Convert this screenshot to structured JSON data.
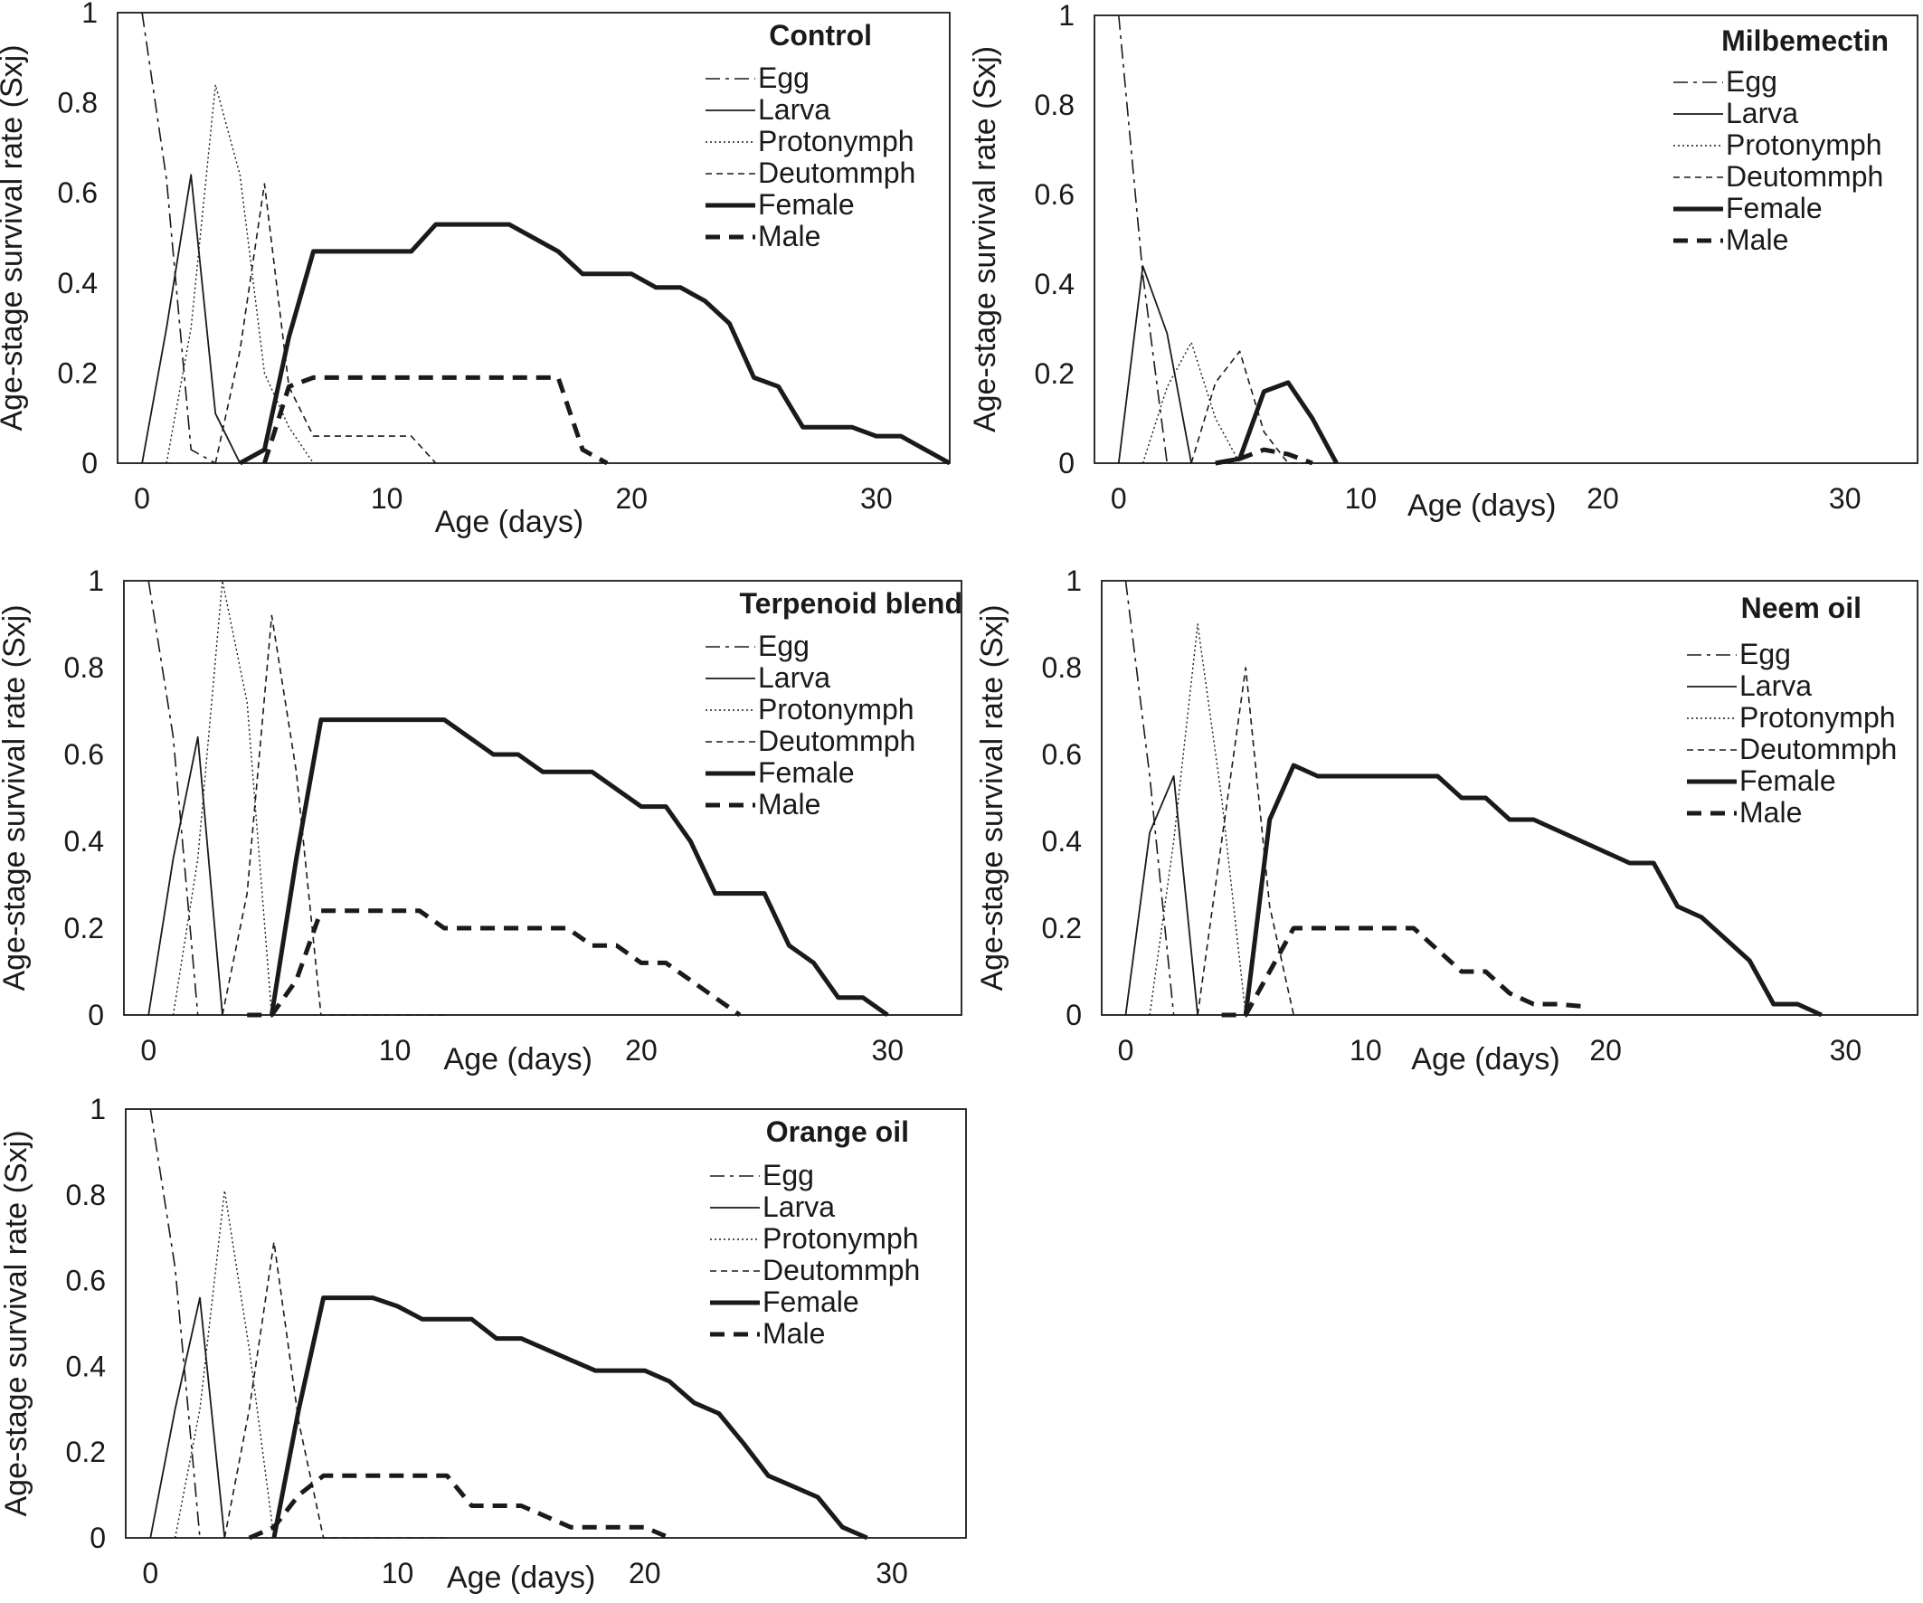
{
  "chart_data": [
    {
      "type": "line",
      "title": "Control",
      "xlabel": "Age (days)",
      "ylabel": "Age-stage survival rate (Sxj)",
      "xlim": [
        -1,
        33
      ],
      "ylim": [
        0,
        1
      ],
      "xticks": [
        0,
        10,
        20,
        30
      ],
      "yticks": [
        0,
        0.2,
        0.4,
        0.6,
        0.8,
        1
      ],
      "series": [
        {
          "name": "Egg",
          "x": [
            0,
            1,
            2,
            3
          ],
          "y": [
            1,
            0.63,
            0.03,
            0
          ]
        },
        {
          "name": "Larva",
          "x": [
            0,
            1,
            2,
            3,
            4
          ],
          "y": [
            0,
            0.3,
            0.64,
            0.11,
            0
          ]
        },
        {
          "name": "Protonymph",
          "x": [
            1,
            2,
            3,
            4,
            5,
            6,
            7
          ],
          "y": [
            0,
            0.3,
            0.84,
            0.64,
            0.2,
            0.08,
            0
          ]
        },
        {
          "name": "Deutommph",
          "x": [
            3,
            4,
            5,
            6,
            7,
            8,
            9,
            10,
            11,
            12
          ],
          "y": [
            0,
            0.25,
            0.62,
            0.17,
            0.06,
            0.06,
            0.06,
            0.06,
            0.06,
            0
          ]
        },
        {
          "name": "Female",
          "x": [
            4,
            5,
            6,
            7,
            8,
            9,
            10,
            11,
            12,
            13,
            14,
            15,
            16,
            17,
            18,
            19,
            20,
            21,
            22,
            23,
            24,
            25,
            26,
            27,
            28,
            29,
            30,
            31,
            32,
            33
          ],
          "y": [
            0,
            0.03,
            0.28,
            0.47,
            0.47,
            0.47,
            0.47,
            0.47,
            0.53,
            0.53,
            0.53,
            0.53,
            0.5,
            0.47,
            0.42,
            0.42,
            0.42,
            0.39,
            0.39,
            0.36,
            0.31,
            0.19,
            0.17,
            0.08,
            0.08,
            0.08,
            0.06,
            0.06,
            0.03,
            0
          ]
        },
        {
          "name": "Male",
          "x": [
            5,
            6,
            7,
            8,
            9,
            10,
            11,
            12,
            13,
            14,
            15,
            16,
            17,
            18,
            19
          ],
          "y": [
            0,
            0.17,
            0.19,
            0.19,
            0.19,
            0.19,
            0.19,
            0.19,
            0.19,
            0.19,
            0.19,
            0.19,
            0.19,
            0.03,
            0
          ]
        }
      ]
    },
    {
      "type": "line",
      "title": "Milbemectin",
      "xlabel": "Age (days)",
      "ylabel": "Age-stage survival rate (Sxj)",
      "xlim": [
        -1,
        33
      ],
      "ylim": [
        0,
        1
      ],
      "xticks": [
        0,
        10,
        20,
        30
      ],
      "yticks": [
        0,
        0.2,
        0.4,
        0.6,
        0.8,
        1
      ],
      "series": [
        {
          "name": "Egg",
          "x": [
            0,
            1,
            2
          ],
          "y": [
            1,
            0.42,
            0
          ]
        },
        {
          "name": "Larva",
          "x": [
            0,
            1,
            2,
            3
          ],
          "y": [
            0,
            0.44,
            0.29,
            0
          ]
        },
        {
          "name": "Protonymph",
          "x": [
            1,
            2,
            3,
            4,
            5
          ],
          "y": [
            0,
            0.17,
            0.27,
            0.1,
            0
          ]
        },
        {
          "name": "Deutommph",
          "x": [
            3,
            4,
            5,
            6,
            7,
            8
          ],
          "y": [
            0,
            0.18,
            0.25,
            0.07,
            0,
            0
          ]
        },
        {
          "name": "Female",
          "x": [
            4,
            5,
            6,
            7,
            8,
            9
          ],
          "y": [
            0,
            0.01,
            0.16,
            0.18,
            0.1,
            0
          ]
        },
        {
          "name": "Male",
          "x": [
            4,
            5,
            6,
            7,
            8
          ],
          "y": [
            0,
            0.01,
            0.03,
            0.02,
            0
          ]
        }
      ]
    },
    {
      "type": "line",
      "title": "Terpenoid blend",
      "xlabel": "Age (days)",
      "ylabel": "Age-stage survival rate (Sxj)",
      "xlim": [
        -1,
        33
      ],
      "ylim": [
        0,
        1
      ],
      "xticks": [
        0,
        10,
        20,
        30
      ],
      "yticks": [
        0,
        0.2,
        0.4,
        0.6,
        0.8,
        1
      ],
      "series": [
        {
          "name": "Egg",
          "x": [
            0,
            1,
            2
          ],
          "y": [
            1,
            0.64,
            0
          ]
        },
        {
          "name": "Larva",
          "x": [
            0,
            1,
            2,
            3
          ],
          "y": [
            0,
            0.36,
            0.64,
            0
          ]
        },
        {
          "name": "Protonymph",
          "x": [
            1,
            2,
            3,
            4,
            5
          ],
          "y": [
            0,
            0.36,
            1,
            0.72,
            0
          ]
        },
        {
          "name": "Deutommph",
          "x": [
            3,
            4,
            5,
            6,
            7,
            8,
            9,
            10,
            11,
            12
          ],
          "y": [
            0,
            0.28,
            0.92,
            0.56,
            0,
            0,
            0,
            0,
            0,
            0
          ]
        },
        {
          "name": "Female",
          "x": [
            5,
            6,
            7,
            8,
            9,
            10,
            11,
            12,
            13,
            14,
            15,
            16,
            17,
            18,
            19,
            20,
            21,
            22,
            23,
            24,
            25,
            26,
            27,
            28,
            29,
            30
          ],
          "y": [
            0,
            0.36,
            0.68,
            0.68,
            0.68,
            0.68,
            0.68,
            0.68,
            0.64,
            0.6,
            0.6,
            0.56,
            0.56,
            0.56,
            0.52,
            0.48,
            0.48,
            0.4,
            0.28,
            0.28,
            0.28,
            0.16,
            0.12,
            0.04,
            0.04,
            0
          ]
        },
        {
          "name": "Male",
          "x": [
            4,
            5,
            6,
            7,
            8,
            9,
            10,
            11,
            12,
            13,
            14,
            15,
            16,
            17,
            18,
            19,
            20,
            21,
            22,
            23,
            24
          ],
          "y": [
            0,
            0,
            0.08,
            0.24,
            0.24,
            0.24,
            0.24,
            0.24,
            0.2,
            0.2,
            0.2,
            0.2,
            0.2,
            0.2,
            0.16,
            0.16,
            0.12,
            0.12,
            0.08,
            0.04,
            0
          ]
        }
      ]
    },
    {
      "type": "line",
      "title": "Neem oil",
      "xlabel": "Age (days)",
      "ylabel": "Age-stage survival rate (Sxj)",
      "xlim": [
        -1,
        33
      ],
      "ylim": [
        0,
        1
      ],
      "xticks": [
        0,
        10,
        20,
        30
      ],
      "yticks": [
        0,
        0.2,
        0.4,
        0.6,
        0.8,
        1
      ],
      "series": [
        {
          "name": "Egg",
          "x": [
            0,
            1,
            2
          ],
          "y": [
            1,
            0.55,
            0
          ]
        },
        {
          "name": "Larva",
          "x": [
            0,
            1,
            2,
            3
          ],
          "y": [
            0,
            0.42,
            0.55,
            0
          ]
        },
        {
          "name": "Protonymph",
          "x": [
            1,
            2,
            3,
            4,
            5
          ],
          "y": [
            0,
            0.4,
            0.9,
            0.5,
            0
          ]
        },
        {
          "name": "Deutommph",
          "x": [
            3,
            4,
            5,
            6,
            7
          ],
          "y": [
            0,
            0.4,
            0.8,
            0.25,
            0
          ]
        },
        {
          "name": "Female",
          "x": [
            5,
            6,
            7,
            8,
            9,
            10,
            11,
            12,
            13,
            14,
            15,
            16,
            17,
            18,
            19,
            20,
            21,
            22,
            23,
            24,
            25,
            26,
            27,
            28,
            29
          ],
          "y": [
            0,
            0.45,
            0.575,
            0.55,
            0.55,
            0.55,
            0.55,
            0.55,
            0.55,
            0.5,
            0.5,
            0.45,
            0.45,
            0.425,
            0.4,
            0.375,
            0.35,
            0.35,
            0.25,
            0.225,
            0.175,
            0.125,
            0.025,
            0.025,
            0
          ]
        },
        {
          "name": "Male",
          "x": [
            4,
            5,
            6,
            7,
            8,
            9,
            10,
            11,
            12,
            13,
            14,
            15,
            16,
            17,
            18,
            19
          ],
          "y": [
            0,
            0,
            0.1,
            0.2,
            0.2,
            0.2,
            0.2,
            0.2,
            0.2,
            0.15,
            0.1,
            0.1,
            0.05,
            0.025,
            0.025,
            0.02
          ]
        }
      ]
    },
    {
      "type": "line",
      "title": "Orange oil",
      "xlabel": "Age (days)",
      "ylabel": "Age-stage survival rate (Sxj)",
      "xlim": [
        -1,
        33
      ],
      "ylim": [
        0,
        1
      ],
      "xticks": [
        0,
        10,
        20,
        30
      ],
      "yticks": [
        0,
        0.2,
        0.4,
        0.6,
        0.8,
        1
      ],
      "series": [
        {
          "name": "Egg",
          "x": [
            0,
            1,
            2
          ],
          "y": [
            1,
            0.63,
            0
          ]
        },
        {
          "name": "Larva",
          "x": [
            0,
            1,
            2,
            3
          ],
          "y": [
            0,
            0.3,
            0.56,
            0
          ]
        },
        {
          "name": "Protonymph",
          "x": [
            1,
            2,
            3,
            4,
            5
          ],
          "y": [
            0,
            0.3,
            0.81,
            0.44,
            0
          ]
        },
        {
          "name": "Deutommph",
          "x": [
            3,
            4,
            5,
            6,
            7,
            8,
            9,
            10,
            11,
            12
          ],
          "y": [
            0,
            0.3,
            0.69,
            0.27,
            0,
            0,
            0,
            0,
            0,
            0
          ]
        },
        {
          "name": "Female",
          "x": [
            5,
            6,
            7,
            8,
            9,
            10,
            11,
            12,
            13,
            14,
            15,
            16,
            17,
            18,
            19,
            20,
            21,
            22,
            23,
            24,
            25,
            26,
            27,
            28,
            29
          ],
          "y": [
            0,
            0.3,
            0.56,
            0.56,
            0.56,
            0.54,
            0.51,
            0.51,
            0.51,
            0.465,
            0.465,
            0.44,
            0.415,
            0.39,
            0.39,
            0.39,
            0.365,
            0.315,
            0.29,
            0.22,
            0.145,
            0.12,
            0.095,
            0.025,
            0
          ]
        },
        {
          "name": "Male",
          "x": [
            4,
            5,
            6,
            7,
            8,
            9,
            10,
            11,
            12,
            13,
            14,
            15,
            16,
            17,
            18,
            19,
            20,
            21
          ],
          "y": [
            0,
            0.025,
            0.1,
            0.145,
            0.145,
            0.145,
            0.145,
            0.145,
            0.145,
            0.075,
            0.075,
            0.075,
            0.05,
            0.025,
            0.025,
            0.025,
            0.025,
            0
          ]
        }
      ]
    }
  ],
  "style": {
    "Egg": {
      "width": 1.6,
      "dash": "16 6 4 6"
    },
    "Larva": {
      "width": 1.8,
      "dash": ""
    },
    "Protonymph": {
      "width": 1.4,
      "dash": "2 3"
    },
    "Deutommph": {
      "width": 1.6,
      "dash": "7 5"
    },
    "Female": {
      "width": 5,
      "dash": ""
    },
    "Male": {
      "width": 5,
      "dash": "16 10"
    },
    "line_color": "#1a1a1a"
  }
}
